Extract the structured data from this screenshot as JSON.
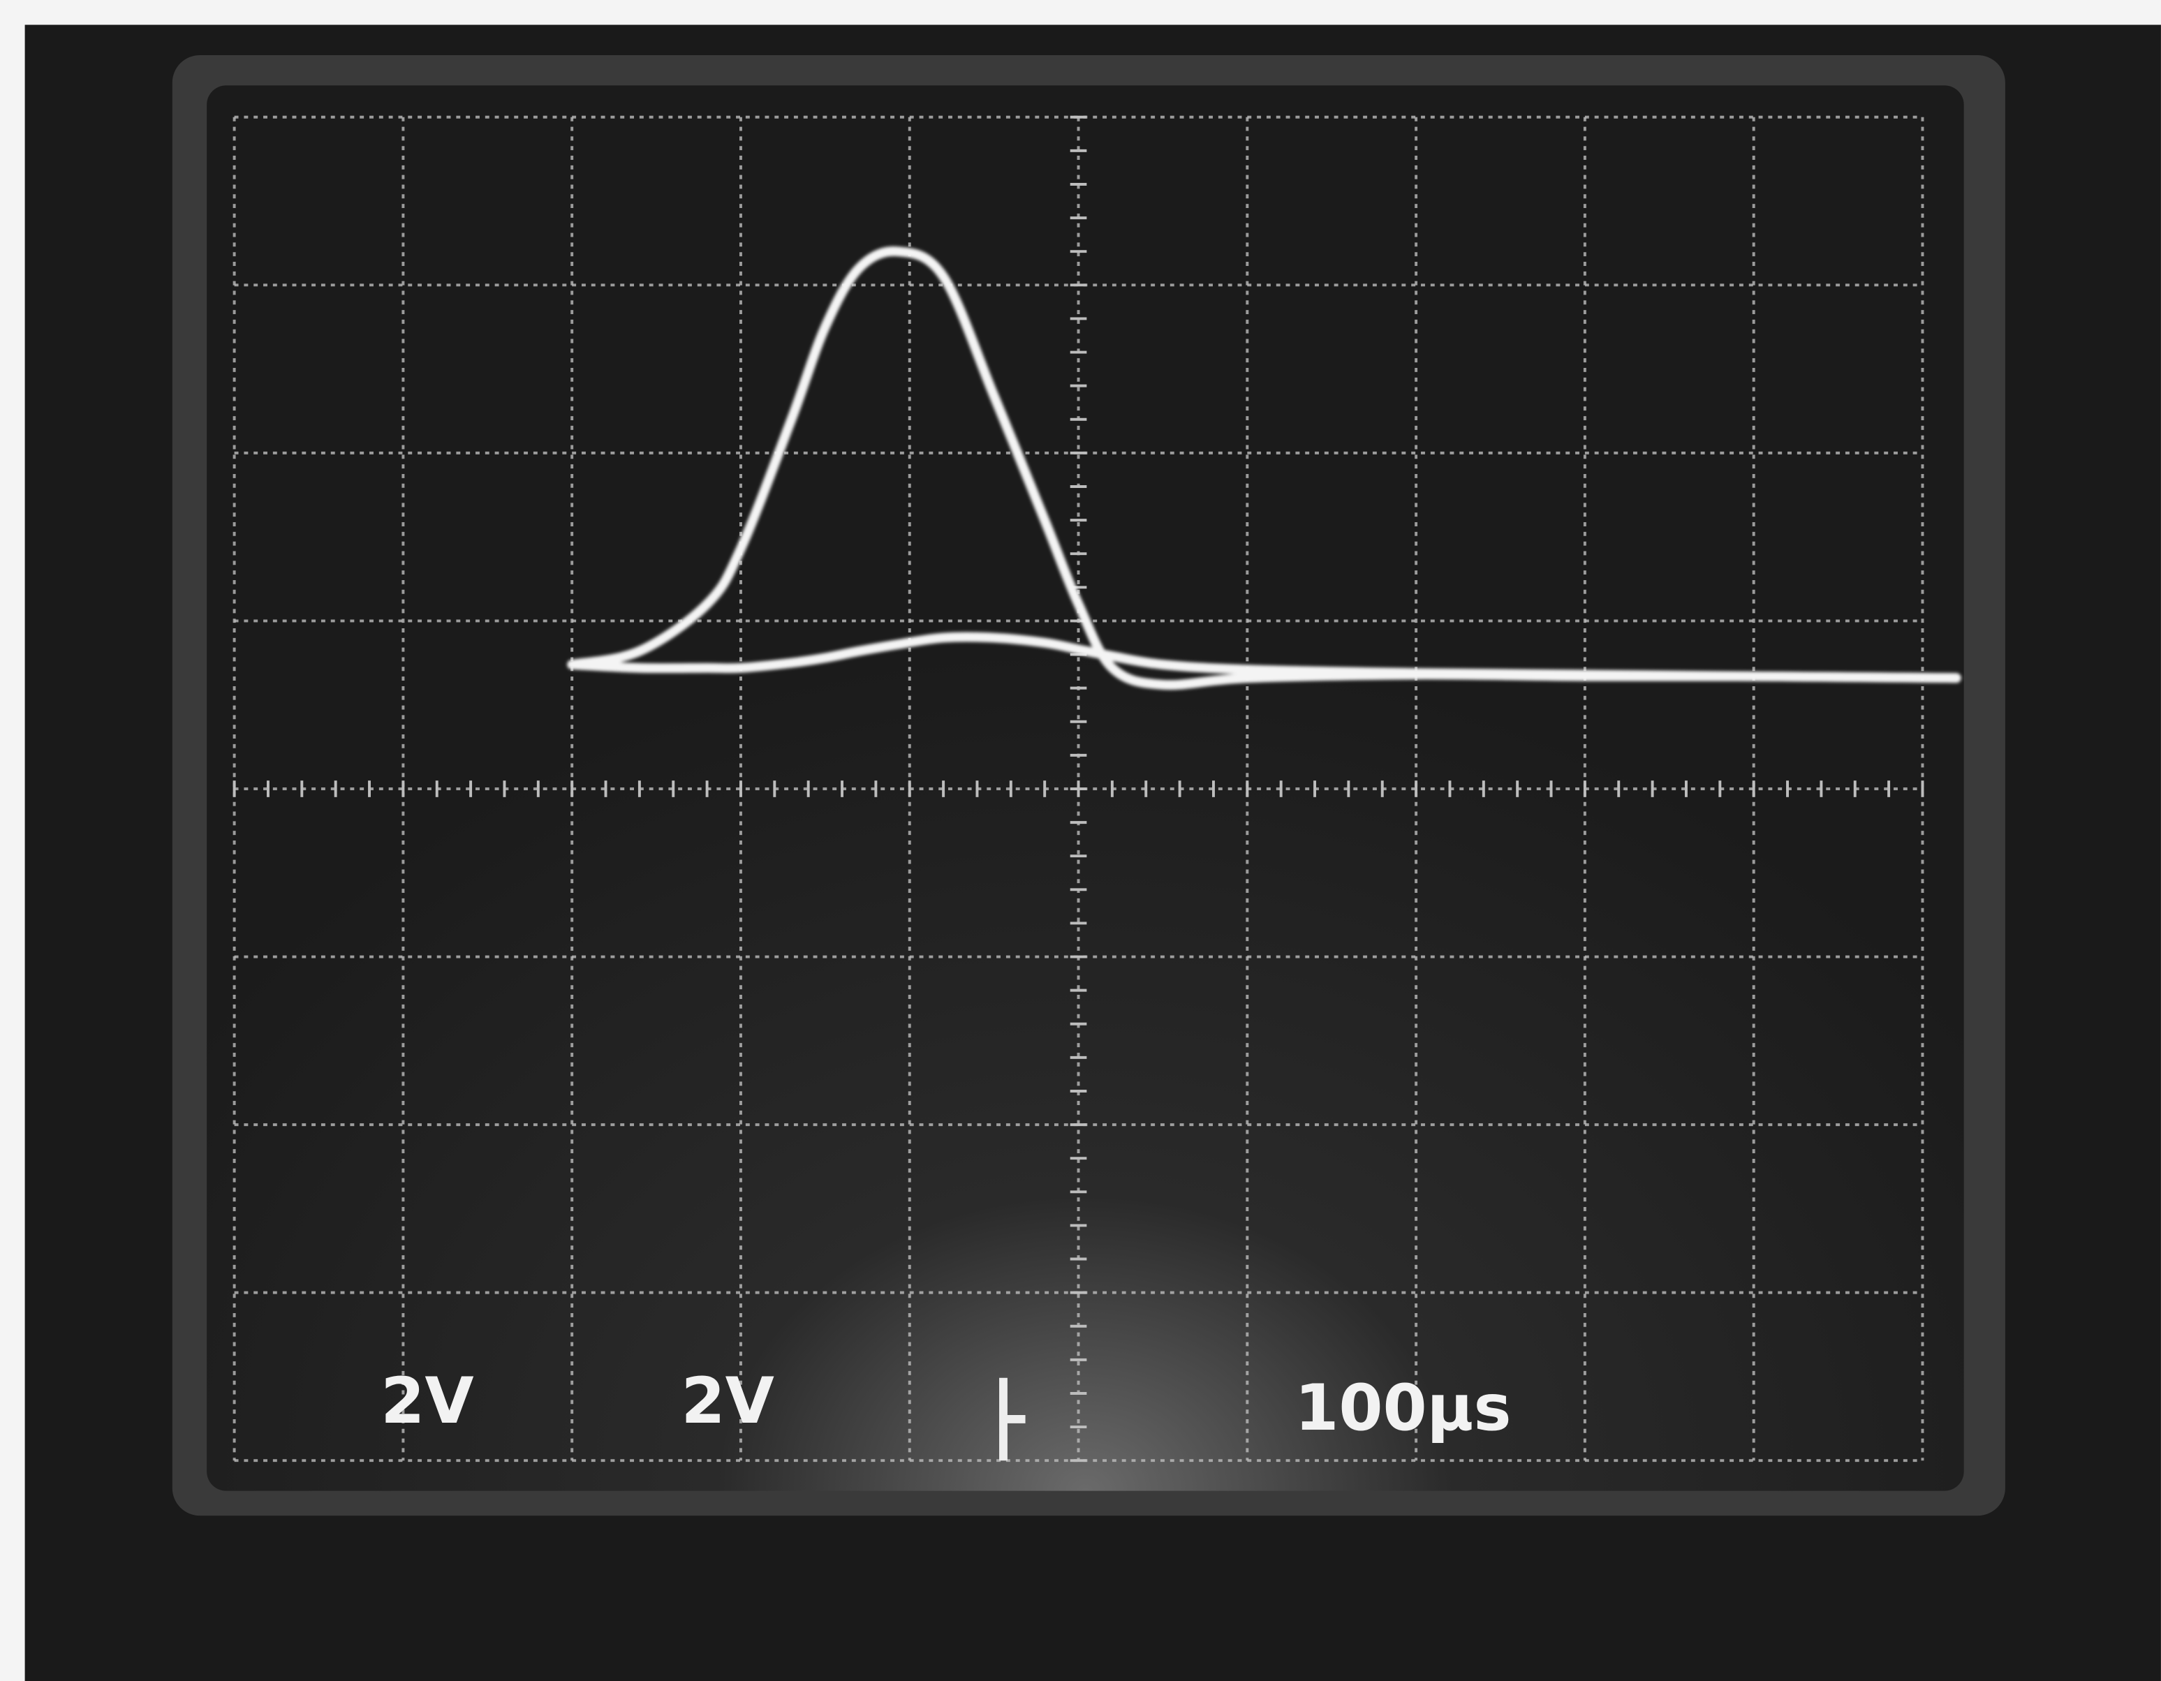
{
  "chart_data": {
    "type": "line",
    "annotations": [
      "2V",
      "2V",
      "100µs"
    ],
    "x": [
      2,
      2.4,
      2.8,
      3.0,
      3.3,
      3.5,
      3.7,
      3.93,
      4.2,
      4.5,
      4.8,
      5.0,
      5.2,
      5.5,
      6,
      7,
      8,
      9,
      10.2
    ],
    "series": [
      {
        "color": "#f4f4f4",
        "values": [
          0.74,
          0.82,
          1.1,
          1.43,
          2.2,
          2.75,
          3.1,
          3.2,
          3.05,
          2.34,
          1.6,
          1.1,
          0.72,
          0.62,
          0.66,
          0.68,
          0.67,
          0.67,
          0.66
        ]
      },
      {
        "color": "#f4f4f4",
        "values": [
          0.74,
          0.72,
          0.72,
          0.72,
          0.75,
          0.78,
          0.82,
          0.86,
          0.9,
          0.9,
          0.87,
          0.83,
          0.79,
          0.74,
          0.71,
          0.69,
          0.68,
          0.67,
          0.66
        ]
      }
    ],
    "xlim": [
      0,
      10
    ],
    "ylim": [
      -4,
      4
    ],
    "xticks": [
      0,
      1,
      2,
      3,
      4,
      5,
      6,
      7,
      8,
      9,
      10
    ],
    "yticks": [
      -4,
      -3,
      -2,
      -1,
      0,
      1,
      2,
      3,
      4
    ],
    "grid": true
  }
}
